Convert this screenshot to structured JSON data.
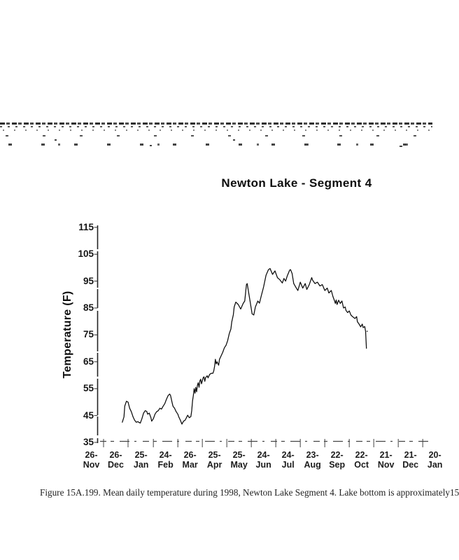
{
  "page": {
    "title": "Newton Lake - Segment 4",
    "caption": "Figure 15A.199. Mean daily temperature during 1998, Newton Lake Segment 4.  Lake bottom is approximately15"
  },
  "chart_data": {
    "type": "line",
    "title": "Newton Lake - Segment 4",
    "xlabel": "",
    "ylabel": "Temperature (F)",
    "ylim": [
      35,
      115
    ],
    "grid": false,
    "legend_position": "none",
    "line_color": "#0b0b0b",
    "y_ticks": [
      115,
      105,
      95,
      85,
      75,
      65,
      55,
      45,
      35
    ],
    "x_ticks": [
      {
        "line1": "26-",
        "line2": "Nov",
        "doy": -36
      },
      {
        "line1": "26-",
        "line2": "Dec",
        "doy": -6
      },
      {
        "line1": "25-",
        "line2": "Jan",
        "doy": 25
      },
      {
        "line1": "24-",
        "line2": "Feb",
        "doy": 55
      },
      {
        "line1": "26-",
        "line2": "Mar",
        "doy": 85
      },
      {
        "line1": "25-",
        "line2": "Apr",
        "doy": 115
      },
      {
        "line1": "25-",
        "line2": "May",
        "doy": 145
      },
      {
        "line1": "24-",
        "line2": "Jun",
        "doy": 175
      },
      {
        "line1": "24-",
        "line2": "Jul",
        "doy": 205
      },
      {
        "line1": "23-",
        "line2": "Aug",
        "doy": 235
      },
      {
        "line1": "22-",
        "line2": "Sep",
        "doy": 265
      },
      {
        "line1": "22-",
        "line2": "Oct",
        "doy": 295
      },
      {
        "line1": "21-",
        "line2": "Nov",
        "doy": 325
      },
      {
        "line1": "21-",
        "line2": "Dec",
        "doy": 355
      },
      {
        "line1": "20-",
        "line2": "Jan",
        "doy": 385
      }
    ],
    "series": [
      {
        "name": "Mean daily temperature during 1998 (deg F)",
        "x_unit": "day of year 1998",
        "points": [
          [
            2,
            42.5
          ],
          [
            4,
            44.5
          ],
          [
            5,
            48.5
          ],
          [
            7,
            50.3
          ],
          [
            9,
            50.0
          ],
          [
            11,
            47.7
          ],
          [
            13,
            46.4
          ],
          [
            15,
            44.6
          ],
          [
            17,
            43.3
          ],
          [
            19,
            42.5
          ],
          [
            21,
            42.7
          ],
          [
            24,
            42.2
          ],
          [
            26,
            43.8
          ],
          [
            28,
            45.9
          ],
          [
            30,
            46.8
          ],
          [
            32,
            46.5
          ],
          [
            33,
            45.5
          ],
          [
            35,
            45.9
          ],
          [
            37,
            44.2
          ],
          [
            38,
            42.9
          ],
          [
            40,
            43.8
          ],
          [
            42,
            45.5
          ],
          [
            44,
            46.4
          ],
          [
            46,
            46.8
          ],
          [
            48,
            47.7
          ],
          [
            50,
            47.4
          ],
          [
            52,
            48.5
          ],
          [
            54,
            49.4
          ],
          [
            56,
            51.0
          ],
          [
            58,
            52.4
          ],
          [
            60,
            53.0
          ],
          [
            61,
            52.5
          ],
          [
            63,
            49.8
          ],
          [
            64,
            48.5
          ],
          [
            66,
            47.7
          ],
          [
            68,
            46.4
          ],
          [
            70,
            45.5
          ],
          [
            71,
            44.6
          ],
          [
            73,
            43.3
          ],
          [
            75,
            41.8
          ],
          [
            77,
            42.9
          ],
          [
            79,
            43.3
          ],
          [
            82,
            45.1
          ],
          [
            84,
            44.2
          ],
          [
            86,
            44.6
          ],
          [
            87,
            46.8
          ],
          [
            88,
            50.5
          ],
          [
            89,
            52.4
          ],
          [
            90,
            55.0
          ],
          [
            91,
            53.3
          ],
          [
            92,
            55.5
          ],
          [
            93,
            53.8
          ],
          [
            94,
            56.3
          ],
          [
            95,
            57.2
          ],
          [
            96,
            55.5
          ],
          [
            97,
            57.9
          ],
          [
            98,
            58.5
          ],
          [
            99,
            56.8
          ],
          [
            101,
            59.0
          ],
          [
            102,
            59.4
          ],
          [
            103,
            57.7
          ],
          [
            104,
            59.1
          ],
          [
            106,
            59.8
          ],
          [
            107,
            59.0
          ],
          [
            109,
            60.3
          ],
          [
            111,
            60.7
          ],
          [
            113,
            60.7
          ],
          [
            114,
            61.6
          ],
          [
            115,
            63.3
          ],
          [
            116,
            65.9
          ],
          [
            117,
            64.2
          ],
          [
            118,
            65.0
          ],
          [
            120,
            63.7
          ],
          [
            121,
            65.9
          ],
          [
            123,
            67.2
          ],
          [
            125,
            68.5
          ],
          [
            127,
            70.2
          ],
          [
            129,
            71.1
          ],
          [
            131,
            72.8
          ],
          [
            133,
            75.5
          ],
          [
            135,
            77.2
          ],
          [
            136,
            79.8
          ],
          [
            138,
            82.5
          ],
          [
            139,
            85.4
          ],
          [
            141,
            87.2
          ],
          [
            144,
            86.3
          ],
          [
            147,
            84.6
          ],
          [
            150,
            86.7
          ],
          [
            152,
            87.6
          ],
          [
            154,
            93.7
          ],
          [
            155,
            94.1
          ],
          [
            157,
            90.2
          ],
          [
            158,
            88.5
          ],
          [
            161,
            82.8
          ],
          [
            163,
            82.4
          ],
          [
            165,
            85.4
          ],
          [
            168,
            87.6
          ],
          [
            170,
            86.8
          ],
          [
            172,
            89.3
          ],
          [
            175,
            92.8
          ],
          [
            178,
            97.2
          ],
          [
            181,
            99.3
          ],
          [
            183,
            99.7
          ],
          [
            186,
            97.5
          ],
          [
            189,
            98.8
          ],
          [
            192,
            96.3
          ],
          [
            195,
            95.5
          ],
          [
            198,
            94.3
          ],
          [
            200,
            96.0
          ],
          [
            202,
            95.0
          ],
          [
            204,
            96.9
          ],
          [
            207,
            99.1
          ],
          [
            208,
            99.3
          ],
          [
            210,
            97.8
          ],
          [
            212,
            94.1
          ],
          [
            215,
            92.5
          ],
          [
            217,
            91.5
          ],
          [
            220,
            94.6
          ],
          [
            223,
            92.4
          ],
          [
            226,
            94.1
          ],
          [
            228,
            91.9
          ],
          [
            231,
            93.7
          ],
          [
            234,
            96.3
          ],
          [
            235,
            95.4
          ],
          [
            238,
            94.1
          ],
          [
            241,
            94.6
          ],
          [
            244,
            93.2
          ],
          [
            247,
            93.7
          ],
          [
            250,
            91.5
          ],
          [
            253,
            92.4
          ],
          [
            255,
            90.6
          ],
          [
            258,
            91.5
          ],
          [
            260,
            89.3
          ],
          [
            262,
            87.6
          ],
          [
            263,
            86.7
          ],
          [
            264,
            88.0
          ],
          [
            265,
            86.3
          ],
          [
            267,
            87.9
          ],
          [
            269,
            86.7
          ],
          [
            271,
            87.6
          ],
          [
            273,
            85.0
          ],
          [
            275,
            85.4
          ],
          [
            276,
            84.1
          ],
          [
            278,
            83.3
          ],
          [
            280,
            83.9
          ],
          [
            282,
            82.4
          ],
          [
            284,
            81.8
          ],
          [
            287,
            81.1
          ],
          [
            289,
            81.8
          ],
          [
            290,
            79.9
          ],
          [
            292,
            79.0
          ],
          [
            294,
            78.0
          ],
          [
            296,
            79.0
          ],
          [
            297,
            77.7
          ],
          [
            299,
            78.1
          ],
          [
            300,
            76.3
          ],
          [
            301,
            70.0
          ]
        ]
      }
    ]
  }
}
